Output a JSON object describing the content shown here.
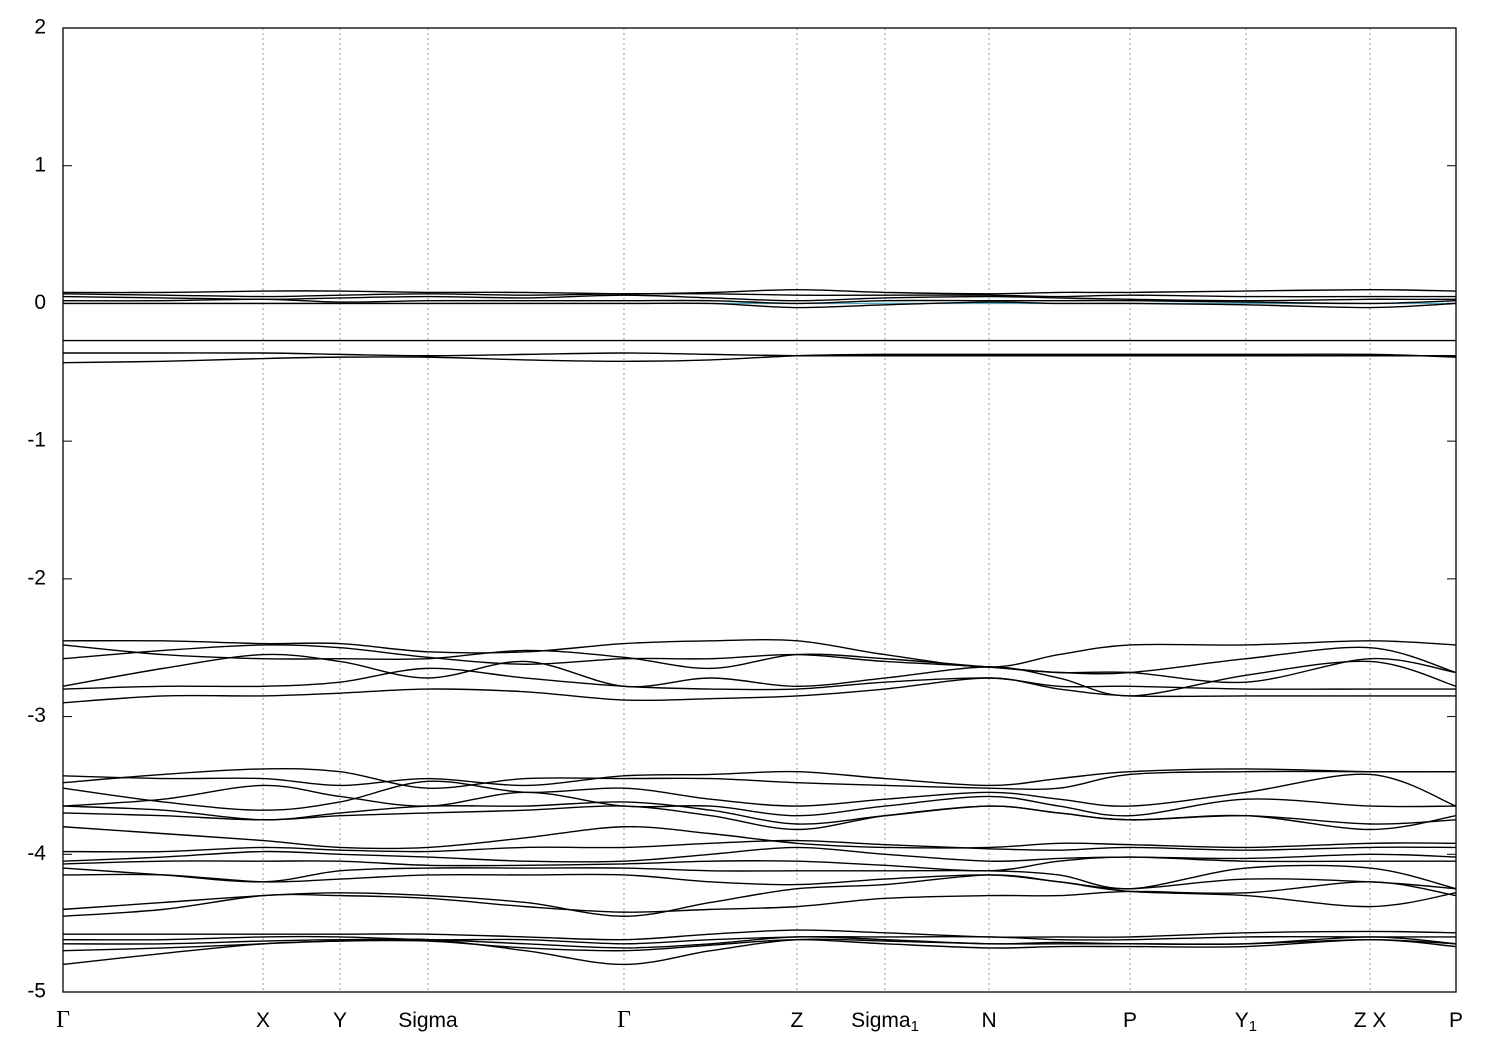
{
  "chart_data": {
    "type": "line",
    "color": "#000000",
    "fermi_level": 0,
    "fermi_color": "#4ea8c0",
    "grid": true,
    "ylim": [
      -5,
      2
    ],
    "yticks": [
      -5,
      -4,
      -3,
      -2,
      -1,
      0,
      1,
      2
    ],
    "xlim": [
      0,
      1
    ],
    "xticks": [
      {
        "value": 0,
        "label": "Γ"
      },
      {
        "value": 0.1436,
        "label": "X"
      },
      {
        "value": 0.1989,
        "label": "Y"
      },
      {
        "value": 0.262,
        "label": "Sigma"
      },
      {
        "value": 0.4027,
        "label": "Γ"
      },
      {
        "value": 0.5269,
        "label": "Z"
      },
      {
        "value": 0.5901,
        "label": "Sigma",
        "sub": "1"
      },
      {
        "value": 0.6648,
        "label": "N"
      },
      {
        "value": 0.766,
        "label": "P"
      },
      {
        "value": 0.8492,
        "label": "Y",
        "sub": "1"
      },
      {
        "value": 0.9383,
        "label": "Z X"
      },
      {
        "value": 1,
        "label": "P"
      }
    ],
    "x": [
      0,
      0.072,
      0.1436,
      0.1989,
      0.262,
      0.332,
      0.4027,
      0.465,
      0.5269,
      0.5901,
      0.6648,
      0.715,
      0.766,
      0.8492,
      0.9383,
      1.0
    ],
    "series": [
      {
        "values": [
          0.08,
          0.08,
          0.09,
          0.09,
          0.08,
          0.08,
          0.07,
          0.08,
          0.1,
          0.08,
          0.07,
          0.08,
          0.08,
          0.09,
          0.1,
          0.09
        ]
      },
      {
        "values": [
          0.07,
          0.06,
          0.05,
          0.06,
          0.07,
          0.06,
          0.07,
          0.07,
          0.06,
          0.06,
          0.06,
          0.05,
          0.06,
          0.05,
          0.05,
          0.05
        ]
      },
      {
        "values": [
          0.05,
          0.04,
          0.03,
          0.04,
          0.05,
          0.04,
          0.06,
          0.04,
          0.02,
          0.04,
          0.05,
          0.04,
          0.03,
          0.02,
          0.03,
          0.03
        ]
      },
      {
        "values": [
          0.02,
          0.02,
          0.03,
          0.01,
          0.02,
          0.02,
          0.02,
          0.02,
          0.0,
          0.02,
          0.02,
          0.02,
          0.02,
          0.01,
          0.0,
          0.02
        ]
      },
      {
        "values": [
          0.0,
          0.0,
          0.0,
          0.0,
          0.0,
          0.0,
          0.0,
          0.0,
          -0.03,
          -0.01,
          0.01,
          0.0,
          0.0,
          -0.01,
          -0.03,
          0.0
        ]
      },
      {
        "values": [
          -0.27,
          -0.27,
          -0.27,
          -0.27,
          -0.27,
          -0.27,
          -0.27,
          -0.27,
          -0.27,
          -0.27,
          -0.27,
          -0.27,
          -0.27,
          -0.27,
          -0.27,
          -0.27
        ]
      },
      {
        "values": [
          -0.36,
          -0.36,
          -0.36,
          -0.37,
          -0.38,
          -0.37,
          -0.36,
          -0.37,
          -0.38,
          -0.38,
          -0.38,
          -0.38,
          -0.38,
          -0.38,
          -0.38,
          -0.38
        ]
      },
      {
        "values": [
          -0.43,
          -0.42,
          -0.4,
          -0.39,
          -0.39,
          -0.41,
          -0.42,
          -0.41,
          -0.38,
          -0.37,
          -0.37,
          -0.37,
          -0.37,
          -0.37,
          -0.37,
          -0.39
        ]
      },
      {
        "values": [
          -2.45,
          -2.45,
          -2.47,
          -2.47,
          -2.53,
          -2.53,
          -2.47,
          -2.45,
          -2.45,
          -2.55,
          -2.64,
          -2.55,
          -2.48,
          -2.48,
          -2.45,
          -2.48
        ]
      },
      {
        "values": [
          -2.48,
          -2.55,
          -2.58,
          -2.58,
          -2.58,
          -2.52,
          -2.57,
          -2.65,
          -2.55,
          -2.58,
          -2.64,
          -2.68,
          -2.68,
          -2.58,
          -2.5,
          -2.68
        ]
      },
      {
        "values": [
          -2.58,
          -2.52,
          -2.48,
          -2.5,
          -2.57,
          -2.62,
          -2.58,
          -2.58,
          -2.55,
          -2.6,
          -2.64,
          -2.68,
          -2.68,
          -2.75,
          -2.58,
          -2.68
        ]
      },
      {
        "values": [
          -2.78,
          -2.65,
          -2.55,
          -2.6,
          -2.72,
          -2.6,
          -2.78,
          -2.72,
          -2.78,
          -2.72,
          -2.64,
          -2.72,
          -2.85,
          -2.7,
          -2.6,
          -2.78
        ]
      },
      {
        "values": [
          -2.8,
          -2.78,
          -2.78,
          -2.75,
          -2.65,
          -2.72,
          -2.78,
          -2.8,
          -2.8,
          -2.75,
          -2.72,
          -2.78,
          -2.78,
          -2.8,
          -2.8,
          -2.8
        ]
      },
      {
        "values": [
          -2.9,
          -2.85,
          -2.85,
          -2.83,
          -2.8,
          -2.82,
          -2.88,
          -2.87,
          -2.85,
          -2.8,
          -2.72,
          -2.8,
          -2.85,
          -2.85,
          -2.85,
          -2.85
        ]
      },
      {
        "values": [
          -3.43,
          -3.45,
          -3.45,
          -3.5,
          -3.45,
          -3.5,
          -3.43,
          -3.42,
          -3.4,
          -3.45,
          -3.5,
          -3.45,
          -3.4,
          -3.38,
          -3.4,
          -3.4
        ]
      },
      {
        "values": [
          -3.48,
          -3.42,
          -3.38,
          -3.4,
          -3.52,
          -3.45,
          -3.45,
          -3.45,
          -3.48,
          -3.5,
          -3.52,
          -3.52,
          -3.42,
          -3.4,
          -3.4,
          -3.4
        ]
      },
      {
        "values": [
          -3.52,
          -3.62,
          -3.68,
          -3.62,
          -3.47,
          -3.55,
          -3.52,
          -3.6,
          -3.65,
          -3.6,
          -3.55,
          -3.6,
          -3.65,
          -3.55,
          -3.42,
          -3.65
        ]
      },
      {
        "values": [
          -3.65,
          -3.6,
          -3.5,
          -3.58,
          -3.65,
          -3.55,
          -3.65,
          -3.65,
          -3.72,
          -3.65,
          -3.58,
          -3.65,
          -3.72,
          -3.6,
          -3.65,
          -3.65
        ]
      },
      {
        "values": [
          -3.65,
          -3.68,
          -3.75,
          -3.7,
          -3.65,
          -3.65,
          -3.62,
          -3.68,
          -3.78,
          -3.72,
          -3.65,
          -3.7,
          -3.75,
          -3.72,
          -3.78,
          -3.75
        ]
      },
      {
        "values": [
          -3.7,
          -3.72,
          -3.75,
          -3.72,
          -3.7,
          -3.68,
          -3.65,
          -3.72,
          -3.82,
          -3.72,
          -3.65,
          -3.7,
          -3.75,
          -3.72,
          -3.82,
          -3.72
        ]
      },
      {
        "values": [
          -3.8,
          -3.85,
          -3.9,
          -3.95,
          -3.95,
          -3.88,
          -3.8,
          -3.85,
          -3.92,
          -3.95,
          -3.95,
          -3.92,
          -3.93,
          -3.95,
          -3.92,
          -3.92
        ]
      },
      {
        "values": [
          -3.98,
          -3.98,
          -3.95,
          -3.97,
          -3.98,
          -3.95,
          -3.95,
          -3.92,
          -3.9,
          -3.93,
          -3.96,
          -3.97,
          -3.95,
          -3.97,
          -3.95,
          -3.95
        ]
      },
      {
        "values": [
          -4.05,
          -4.02,
          -3.98,
          -4.0,
          -4.02,
          -4.05,
          -4.05,
          -4.0,
          -3.95,
          -4.0,
          -4.05,
          -4.03,
          -4.02,
          -4.03,
          -4.0,
          -4.02
        ]
      },
      {
        "values": [
          -4.07,
          -4.05,
          -4.05,
          -4.05,
          -4.08,
          -4.08,
          -4.07,
          -4.05,
          -4.05,
          -4.08,
          -4.12,
          -4.05,
          -4.02,
          -4.05,
          -4.05,
          -4.05
        ]
      },
      {
        "values": [
          -4.1,
          -4.15,
          -4.2,
          -4.12,
          -4.1,
          -4.1,
          -4.1,
          -4.12,
          -4.12,
          -4.12,
          -4.12,
          -4.15,
          -4.25,
          -4.1,
          -4.1,
          -4.25
        ]
      },
      {
        "values": [
          -4.15,
          -4.15,
          -4.2,
          -4.18,
          -4.15,
          -4.15,
          -4.15,
          -4.2,
          -4.22,
          -4.18,
          -4.15,
          -4.2,
          -4.25,
          -4.18,
          -4.2,
          -4.25
        ]
      },
      {
        "values": [
          -4.4,
          -4.35,
          -4.3,
          -4.28,
          -4.3,
          -4.35,
          -4.45,
          -4.35,
          -4.25,
          -4.22,
          -4.15,
          -4.2,
          -4.27,
          -4.3,
          -4.38,
          -4.28
        ]
      },
      {
        "values": [
          -4.45,
          -4.4,
          -4.3,
          -4.3,
          -4.32,
          -4.38,
          -4.42,
          -4.4,
          -4.38,
          -4.32,
          -4.3,
          -4.3,
          -4.27,
          -4.28,
          -4.2,
          -4.3
        ]
      },
      {
        "values": [
          -4.58,
          -4.58,
          -4.58,
          -4.58,
          -4.58,
          -4.6,
          -4.62,
          -4.58,
          -4.55,
          -4.57,
          -4.6,
          -4.6,
          -4.6,
          -4.57,
          -4.56,
          -4.57
        ]
      },
      {
        "values": [
          -4.62,
          -4.62,
          -4.6,
          -4.6,
          -4.62,
          -4.62,
          -4.65,
          -4.62,
          -4.6,
          -4.6,
          -4.6,
          -4.62,
          -4.62,
          -4.6,
          -4.6,
          -4.6
        ]
      },
      {
        "values": [
          -4.65,
          -4.65,
          -4.63,
          -4.62,
          -4.62,
          -4.65,
          -4.68,
          -4.65,
          -4.6,
          -4.62,
          -4.65,
          -4.64,
          -4.65,
          -4.65,
          -4.6,
          -4.65
        ]
      },
      {
        "values": [
          -4.7,
          -4.68,
          -4.65,
          -4.63,
          -4.63,
          -4.68,
          -4.7,
          -4.66,
          -4.62,
          -4.65,
          -4.68,
          -4.67,
          -4.67,
          -4.67,
          -4.62,
          -4.67
        ]
      },
      {
        "values": [
          -4.8,
          -4.72,
          -4.65,
          -4.63,
          -4.62,
          -4.7,
          -4.8,
          -4.7,
          -4.62,
          -4.63,
          -4.65,
          -4.65,
          -4.65,
          -4.65,
          -4.62,
          -4.65
        ]
      }
    ]
  }
}
